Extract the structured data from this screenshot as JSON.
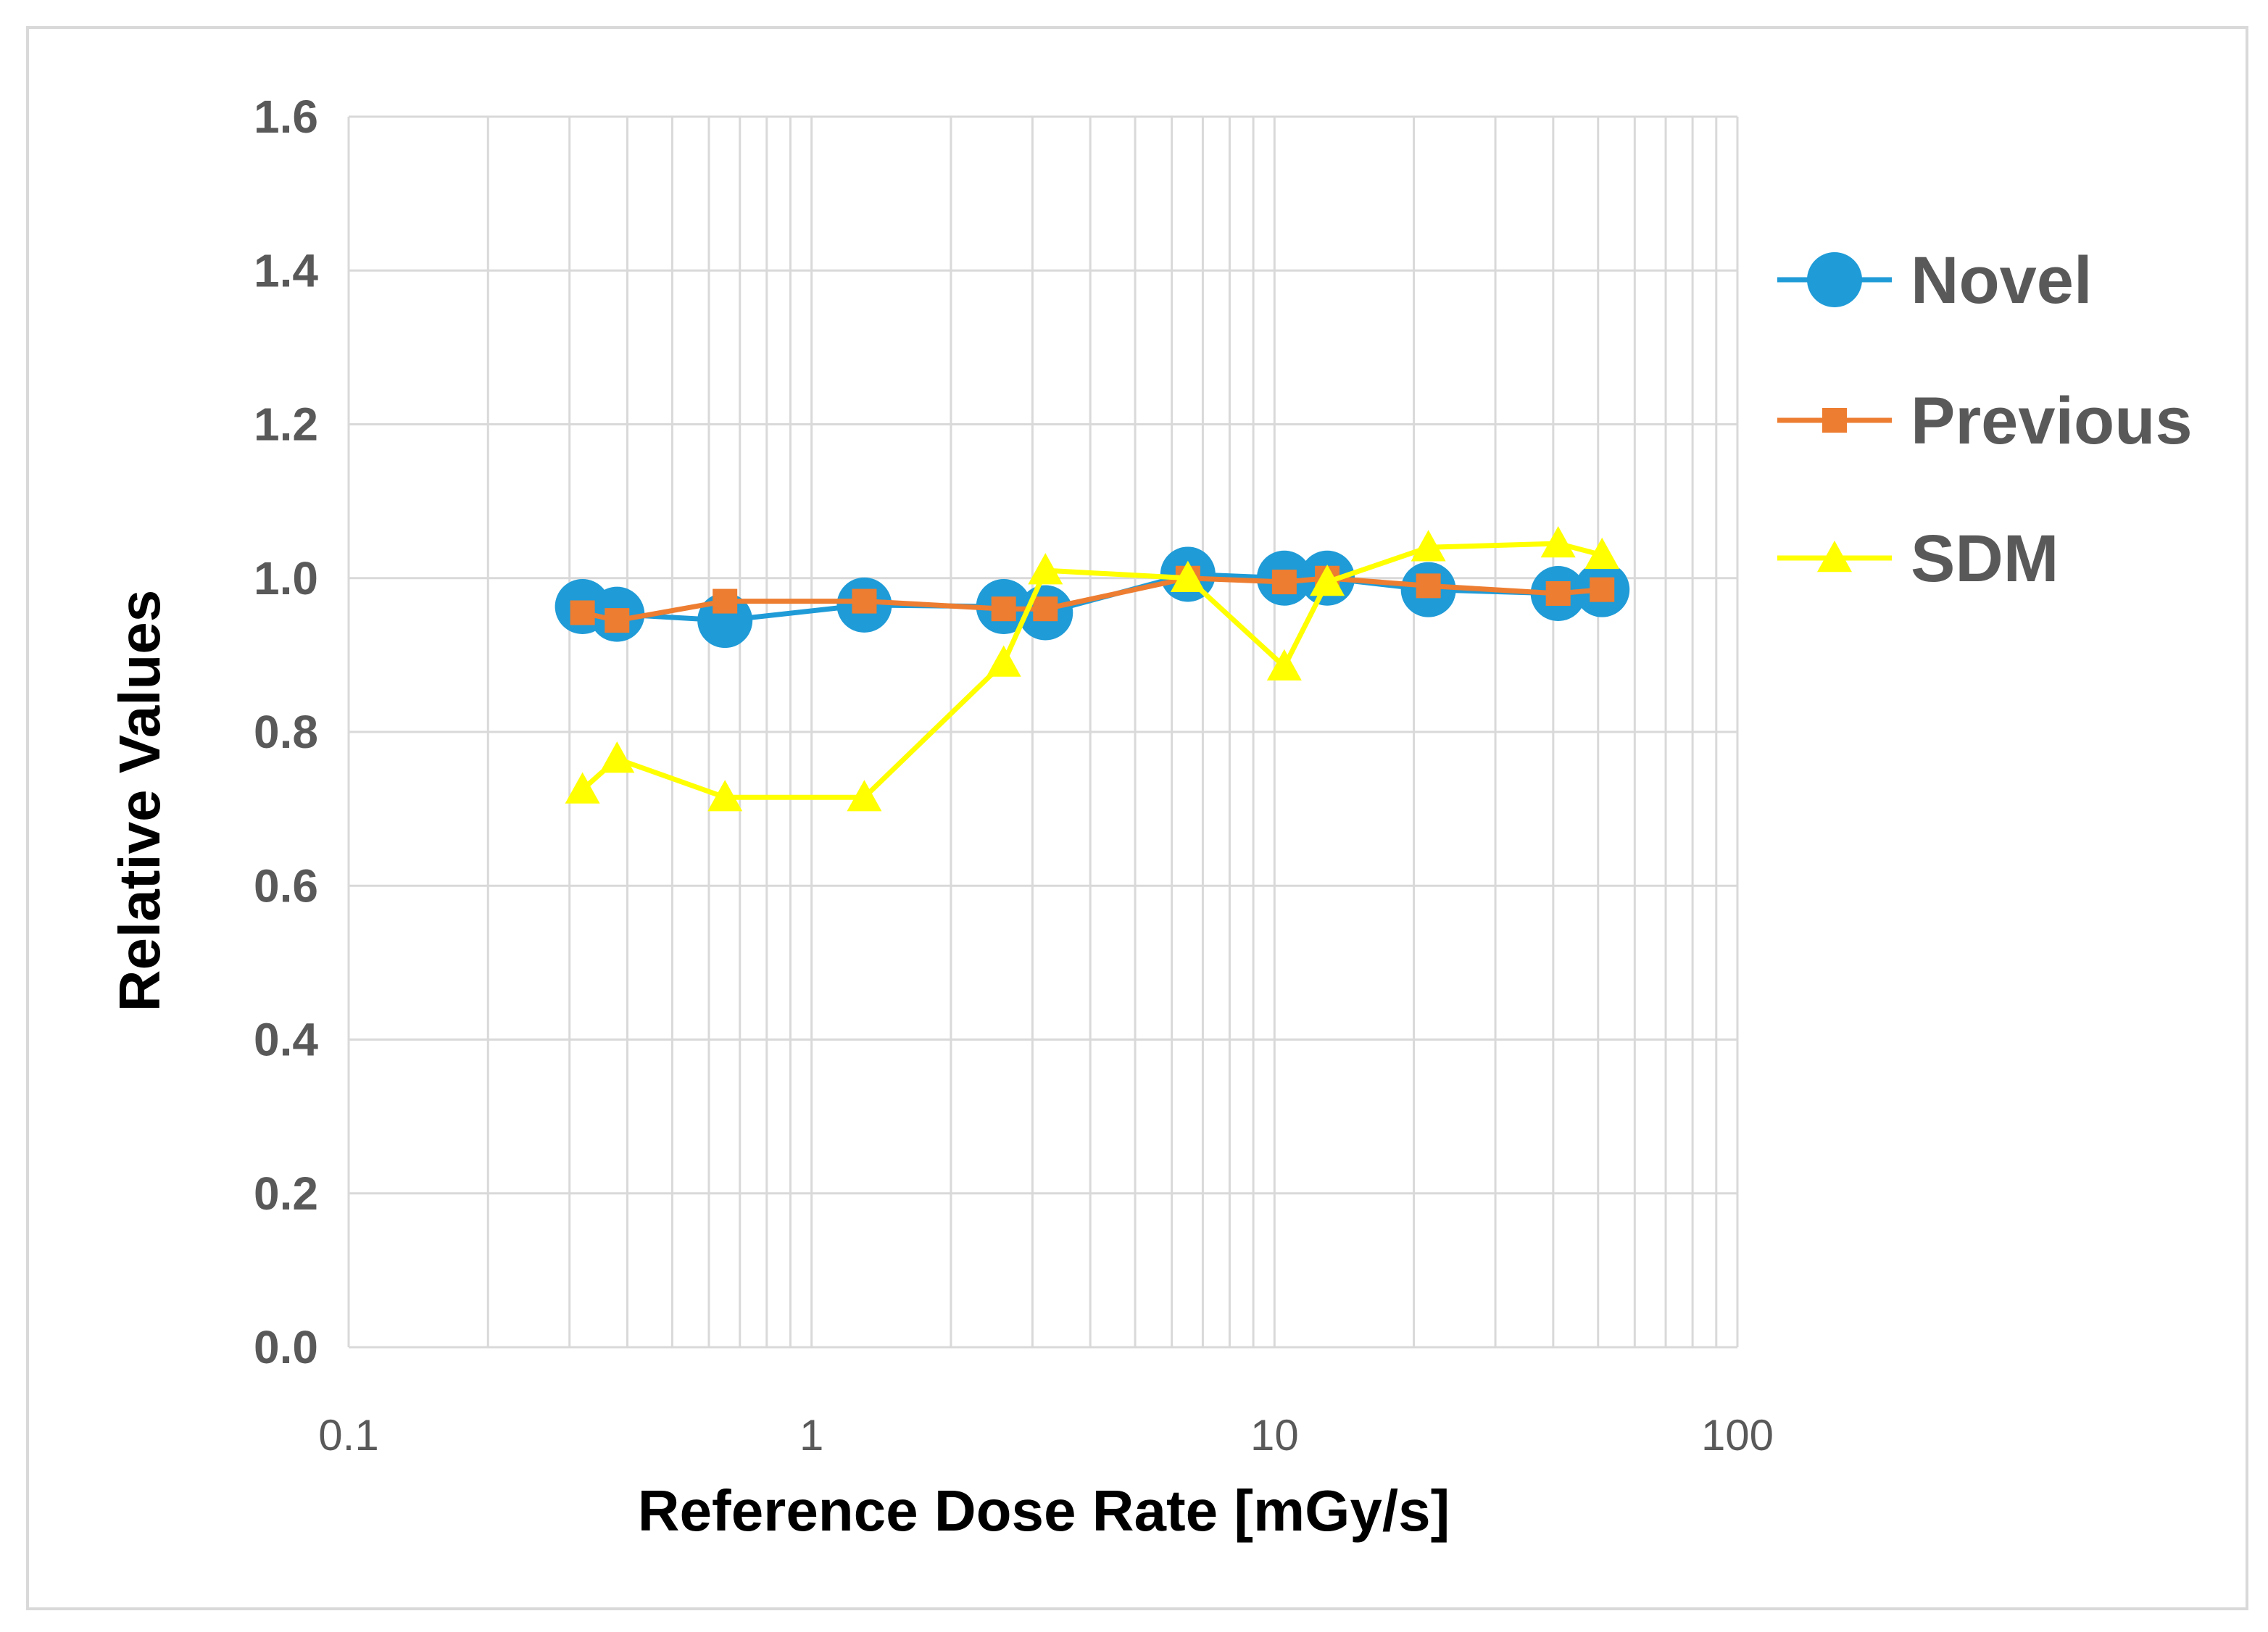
{
  "chart_data": {
    "type": "scatter",
    "title": "",
    "xlabel": "Reference Dose Rate [mGy/s]",
    "ylabel": "Relative Values",
    "xscale": "log",
    "xlim": [
      0.1,
      100
    ],
    "ylim": [
      0.0,
      1.6
    ],
    "grid": true,
    "legend_position": "right",
    "x_tick_labels": [
      "0.1",
      "1",
      "10",
      "100"
    ],
    "y_tick_labels": [
      "0.0",
      "0.2",
      "0.4",
      "0.6",
      "0.8",
      "1.0",
      "1.2",
      "1.4",
      "1.6"
    ],
    "series": [
      {
        "name": "Novel",
        "color": "#1f9bd7",
        "marker": "circle",
        "points": [
          [
            0.32,
            0.963
          ],
          [
            0.38,
            0.953
          ],
          [
            0.65,
            0.945
          ],
          [
            1.3,
            0.965
          ],
          [
            2.6,
            0.963
          ],
          [
            3.2,
            0.955
          ],
          [
            6.5,
            1.005
          ],
          [
            10.5,
            1.0
          ],
          [
            13,
            1.0
          ],
          [
            21.5,
            0.985
          ],
          [
            41,
            0.98
          ],
          [
            51,
            0.985
          ]
        ]
      },
      {
        "name": "Previous",
        "color": "#ed7d31",
        "marker": "square",
        "points": [
          [
            0.32,
            0.955
          ],
          [
            0.38,
            0.945
          ],
          [
            0.65,
            0.97
          ],
          [
            1.3,
            0.97
          ],
          [
            2.6,
            0.96
          ],
          [
            3.2,
            0.96
          ],
          [
            6.5,
            1.0
          ],
          [
            10.5,
            0.995
          ],
          [
            13,
            1.0
          ],
          [
            21.5,
            0.99
          ],
          [
            41,
            0.98
          ],
          [
            51,
            0.985
          ]
        ]
      },
      {
        "name": "SDM",
        "color": "#ffff00",
        "marker": "triangle",
        "points": [
          [
            0.32,
            0.725
          ],
          [
            0.38,
            0.765
          ],
          [
            0.65,
            0.715
          ],
          [
            1.3,
            0.715
          ],
          [
            2.6,
            0.89
          ],
          [
            3.2,
            1.01
          ],
          [
            6.5,
            1.0
          ],
          [
            10.5,
            0.885
          ],
          [
            13,
            0.995
          ],
          [
            21.5,
            1.04
          ],
          [
            41,
            1.045
          ],
          [
            51,
            1.03
          ]
        ]
      }
    ]
  }
}
